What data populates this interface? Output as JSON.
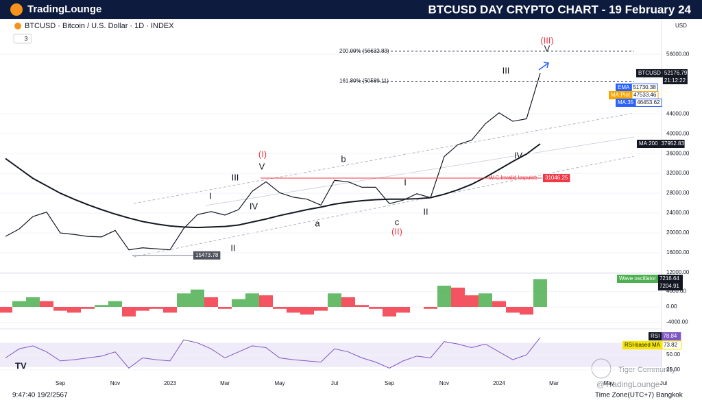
{
  "header": {
    "brand": "TradingLounge",
    "title": "BTCUSD DAY CRYPTO CHART - 19 February 24"
  },
  "symbol_line": "BTCUSD · Bitcoin / U.S. Dollar · 1D · INDEX",
  "badge": "3",
  "currency": "USD",
  "countdown": "21:12:22",
  "footer": {
    "time": "9:47:40 19/2/2567",
    "timezone": "Time Zone(UTC+7) Bangkok",
    "watermark": "Tiger Community",
    "handle": "@TradingLounge",
    "tv": "TV"
  },
  "chart_data": [
    {
      "type": "line",
      "categories": [
        null,
        null,
        null,
        null,
        "Sep",
        null,
        null,
        null,
        "Nov",
        null,
        null,
        null,
        "2023",
        null,
        null,
        null,
        "Mar",
        null,
        null,
        null,
        "May",
        null,
        null,
        null,
        "Jul",
        null,
        null,
        null,
        "Sep",
        null,
        null,
        null,
        "Nov",
        null,
        null,
        null,
        "2024",
        null,
        null,
        null,
        "Mar",
        null,
        null,
        null,
        "May",
        null,
        null,
        null,
        "Jul"
      ],
      "series": [
        {
          "name": "BTCUSD",
          "color": "#131722",
          "values": [
            19300,
            20800,
            23300,
            24200,
            20000,
            19700,
            19300,
            19200,
            20500,
            16600,
            17000,
            16800,
            16600,
            20900,
            23700,
            24300,
            23600,
            24700,
            28400,
            30300,
            28100,
            27200,
            26800,
            25600,
            30600,
            30300,
            29200,
            29200,
            25900,
            26600,
            27900,
            27100,
            35400,
            37800,
            38700,
            42000,
            44200,
            42500,
            43000,
            52176.79,
            null,
            null,
            null,
            null,
            null,
            null,
            null,
            null,
            null
          ]
        },
        {
          "name": "MA:200",
          "color": "#131722",
          "values": [
            35000,
            33000,
            31000,
            29500,
            28000,
            26800,
            25700,
            24700,
            23800,
            23000,
            22300,
            21800,
            21400,
            21200,
            21100,
            21200,
            21300,
            21600,
            22200,
            22800,
            23500,
            24100,
            24700,
            25200,
            25800,
            26200,
            26500,
            26700,
            26800,
            26800,
            26900,
            27100,
            27800,
            28700,
            29800,
            31200,
            32800,
            34400,
            35900,
            37952.83,
            null,
            null,
            null,
            null,
            null,
            null,
            null,
            null,
            null
          ]
        }
      ],
      "ylim": [
        12000,
        62800
      ],
      "yticks": [
        {
          "value": 56000,
          "label": "56000.00"
        },
        {
          "value": 44000,
          "label": "44000.00"
        },
        {
          "value": 40000,
          "label": "40000.00"
        },
        {
          "value": 36000,
          "label": "36000.00"
        },
        {
          "value": 32000,
          "label": "32000.00"
        },
        {
          "value": 28000,
          "label": "28000.00"
        },
        {
          "value": 24000,
          "label": "24000.00"
        },
        {
          "value": 20000,
          "label": "20000.00"
        },
        {
          "value": 16000,
          "label": "16000.00"
        },
        {
          "value": 12000,
          "label": "12000.00"
        }
      ],
      "indicator_tags": [
        {
          "name": "EMA",
          "value": 51730.38,
          "color": "#2962ff"
        },
        {
          "name": "MA:Plot",
          "value": 47533.46,
          "color": "#f7a600"
        },
        {
          "name": "MA:35",
          "value": 46453.62,
          "color": "#2962ff"
        }
      ],
      "levels": [
        {
          "label": "200.00% (56632.83)",
          "value": 56632.83
        },
        {
          "label": "161.80% (50589.11)",
          "value": 50589.11
        }
      ],
      "invalidation": {
        "label": "W.C.Invalid Impulse",
        "value": 31046.25,
        "color": "#f23645"
      },
      "low_label": {
        "value": 15473.78
      },
      "wave_labels": [
        {
          "text": "(I)",
          "color": "#f23645"
        },
        {
          "text": "V",
          "color": "#131722"
        },
        {
          "text": "III",
          "color": "#131722"
        },
        {
          "text": "I",
          "color": "#131722"
        },
        {
          "text": "IV",
          "color": "#131722"
        },
        {
          "text": "II",
          "color": "#131722"
        },
        {
          "text": "a",
          "color": "#131722"
        },
        {
          "text": "b",
          "color": "#131722"
        },
        {
          "text": "c",
          "color": "#131722"
        },
        {
          "text": "(II)",
          "color": "#f23645"
        },
        {
          "text": "I",
          "color": "#131722"
        },
        {
          "text": "II",
          "color": "#131722"
        },
        {
          "text": "III",
          "color": "#131722"
        },
        {
          "text": "IV",
          "color": "#131722"
        },
        {
          "text": "(III)",
          "color": "#f23645"
        },
        {
          "text": "V",
          "color": "#131722"
        }
      ]
    },
    {
      "type": "bar",
      "name": "Wave oscillator",
      "up_color": "#4caf50",
      "down_color": "#f23645",
      "values": [
        -1500,
        1500,
        2500,
        1500,
        -1000,
        -1500,
        -500,
        500,
        1500,
        -2500,
        -1000,
        -500,
        -1500,
        3500,
        4500,
        2500,
        -500,
        2000,
        3500,
        3000,
        -500,
        -1500,
        -2000,
        -1000,
        3500,
        2500,
        500,
        -500,
        -2500,
        -1500,
        0,
        -500,
        5500,
        5000,
        3000,
        3500,
        1500,
        -1500,
        -2000,
        7216.64
      ],
      "signal_value": 7204.91,
      "ylim": [
        -5333,
        8533
      ],
      "yticks": [
        {
          "value": 4000,
          "label": "4000.00"
        },
        {
          "value": 0,
          "label": "0.00"
        },
        {
          "value": -4000,
          "label": "-4000.00"
        }
      ]
    },
    {
      "type": "line",
      "name": "RSI",
      "color": "#7e57c2",
      "ma_name": "RSI-based MA",
      "ma_value": 73.82,
      "values": [
        45,
        60,
        65,
        55,
        40,
        42,
        45,
        48,
        55,
        28,
        45,
        42,
        40,
        75,
        70,
        60,
        45,
        55,
        65,
        62,
        45,
        42,
        40,
        38,
        60,
        55,
        45,
        38,
        28,
        40,
        48,
        45,
        72,
        68,
        62,
        68,
        55,
        42,
        50,
        78.84
      ],
      "band": [
        30,
        70
      ],
      "ylim": [
        16,
        91
      ],
      "yticks": [
        {
          "value": 50,
          "label": "50.00"
        },
        {
          "value": 25,
          "label": "25.00"
        }
      ]
    }
  ]
}
